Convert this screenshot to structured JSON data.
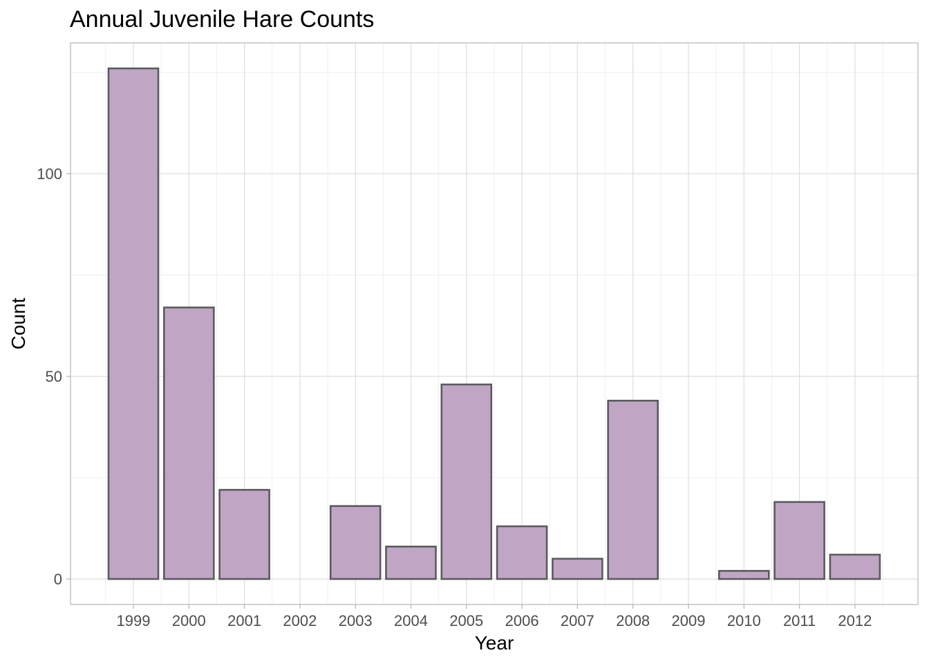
{
  "chart_data": {
    "type": "bar",
    "title": "Annual Juvenile Hare Counts",
    "xlabel": "Year",
    "ylabel": "Count",
    "categories": [
      "1999",
      "2000",
      "2001",
      "2002",
      "2003",
      "2004",
      "2005",
      "2006",
      "2007",
      "2008",
      "2009",
      "2010",
      "2011",
      "2012"
    ],
    "values": [
      126,
      67,
      22,
      0,
      18,
      8,
      48,
      13,
      5,
      44,
      0,
      2,
      19,
      6
    ],
    "y_ticks": [
      "0",
      "50",
      "100"
    ],
    "ylim": [
      -6.3,
      132.3
    ],
    "grid": true,
    "legend": "none",
    "colors": {
      "bar_fill": "#c0a5c4",
      "bar_stroke": "#5a5a5e"
    }
  }
}
